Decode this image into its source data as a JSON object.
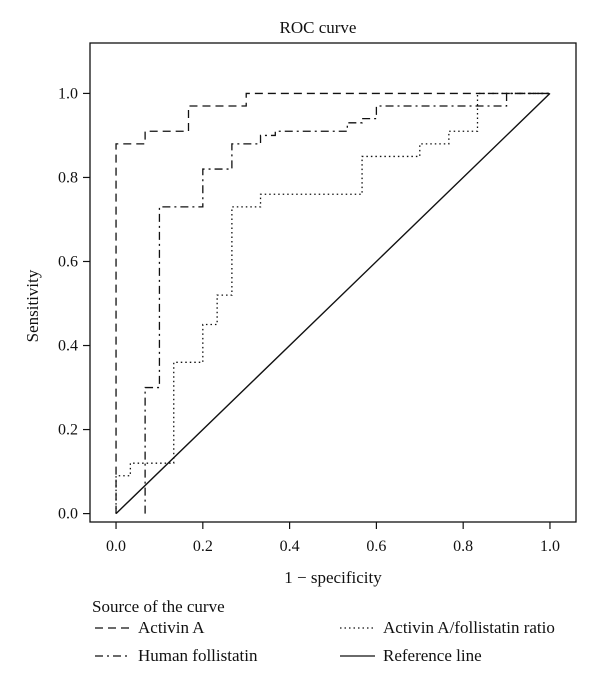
{
  "chart_data": {
    "type": "line",
    "title": "ROC curve",
    "xlabel": "1 − specificity",
    "ylabel": "Sensitivity",
    "xlim": [
      -0.06,
      1.06
    ],
    "ylim": [
      -0.02,
      1.12
    ],
    "x_ticks": [
      0.0,
      0.2,
      0.4,
      0.6,
      0.8,
      1.0
    ],
    "x_tick_labels": [
      "0.0",
      "0.2",
      "0.4",
      "0.6",
      "0.8",
      "1.0"
    ],
    "y_ticks": [
      0.0,
      0.2,
      0.4,
      0.6,
      0.8,
      1.0
    ],
    "y_tick_labels": [
      "0.0",
      "0.2",
      "0.4",
      "0.6",
      "0.8",
      "1.0"
    ],
    "grid": false,
    "legend": {
      "title": "Source of the curve",
      "placement": "bottom"
    },
    "series": [
      {
        "name": "Activin A",
        "style": "dashed",
        "x": [
          0.0,
          0.0,
          0.0,
          0.067,
          0.067,
          0.167,
          0.167,
          0.3,
          0.3,
          1.0
        ],
        "y": [
          0.0,
          0.0,
          0.88,
          0.88,
          0.91,
          0.91,
          0.97,
          0.97,
          1.0,
          1.0
        ]
      },
      {
        "name": "Human follistatin",
        "style": "dashdot",
        "x": [
          0.067,
          0.067,
          0.067,
          0.1,
          0.1,
          0.2,
          0.2,
          0.267,
          0.267,
          0.333,
          0.333,
          0.367,
          0.367,
          0.533,
          0.533,
          0.567,
          0.567,
          0.6,
          0.6,
          0.9,
          0.9,
          1.0
        ],
        "y": [
          0.0,
          0.0,
          0.3,
          0.3,
          0.73,
          0.73,
          0.82,
          0.82,
          0.88,
          0.88,
          0.9,
          0.9,
          0.91,
          0.91,
          0.93,
          0.93,
          0.94,
          0.94,
          0.97,
          0.97,
          1.0,
          1.0
        ]
      },
      {
        "name": "Activin A/follistatin ratio",
        "style": "dotted",
        "x": [
          0.0,
          0.0,
          0.033,
          0.033,
          0.133,
          0.133,
          0.2,
          0.2,
          0.233,
          0.233,
          0.267,
          0.267,
          0.333,
          0.333,
          0.567,
          0.567,
          0.7,
          0.7,
          0.767,
          0.767,
          0.833,
          0.833,
          1.0
        ],
        "y": [
          0.0,
          0.09,
          0.09,
          0.12,
          0.12,
          0.36,
          0.36,
          0.45,
          0.45,
          0.52,
          0.52,
          0.73,
          0.73,
          0.76,
          0.76,
          0.85,
          0.85,
          0.88,
          0.88,
          0.91,
          0.91,
          1.0,
          1.0
        ]
      },
      {
        "name": "Reference line",
        "style": "solid",
        "x": [
          0.0,
          1.0
        ],
        "y": [
          0.0,
          1.0
        ]
      }
    ]
  }
}
